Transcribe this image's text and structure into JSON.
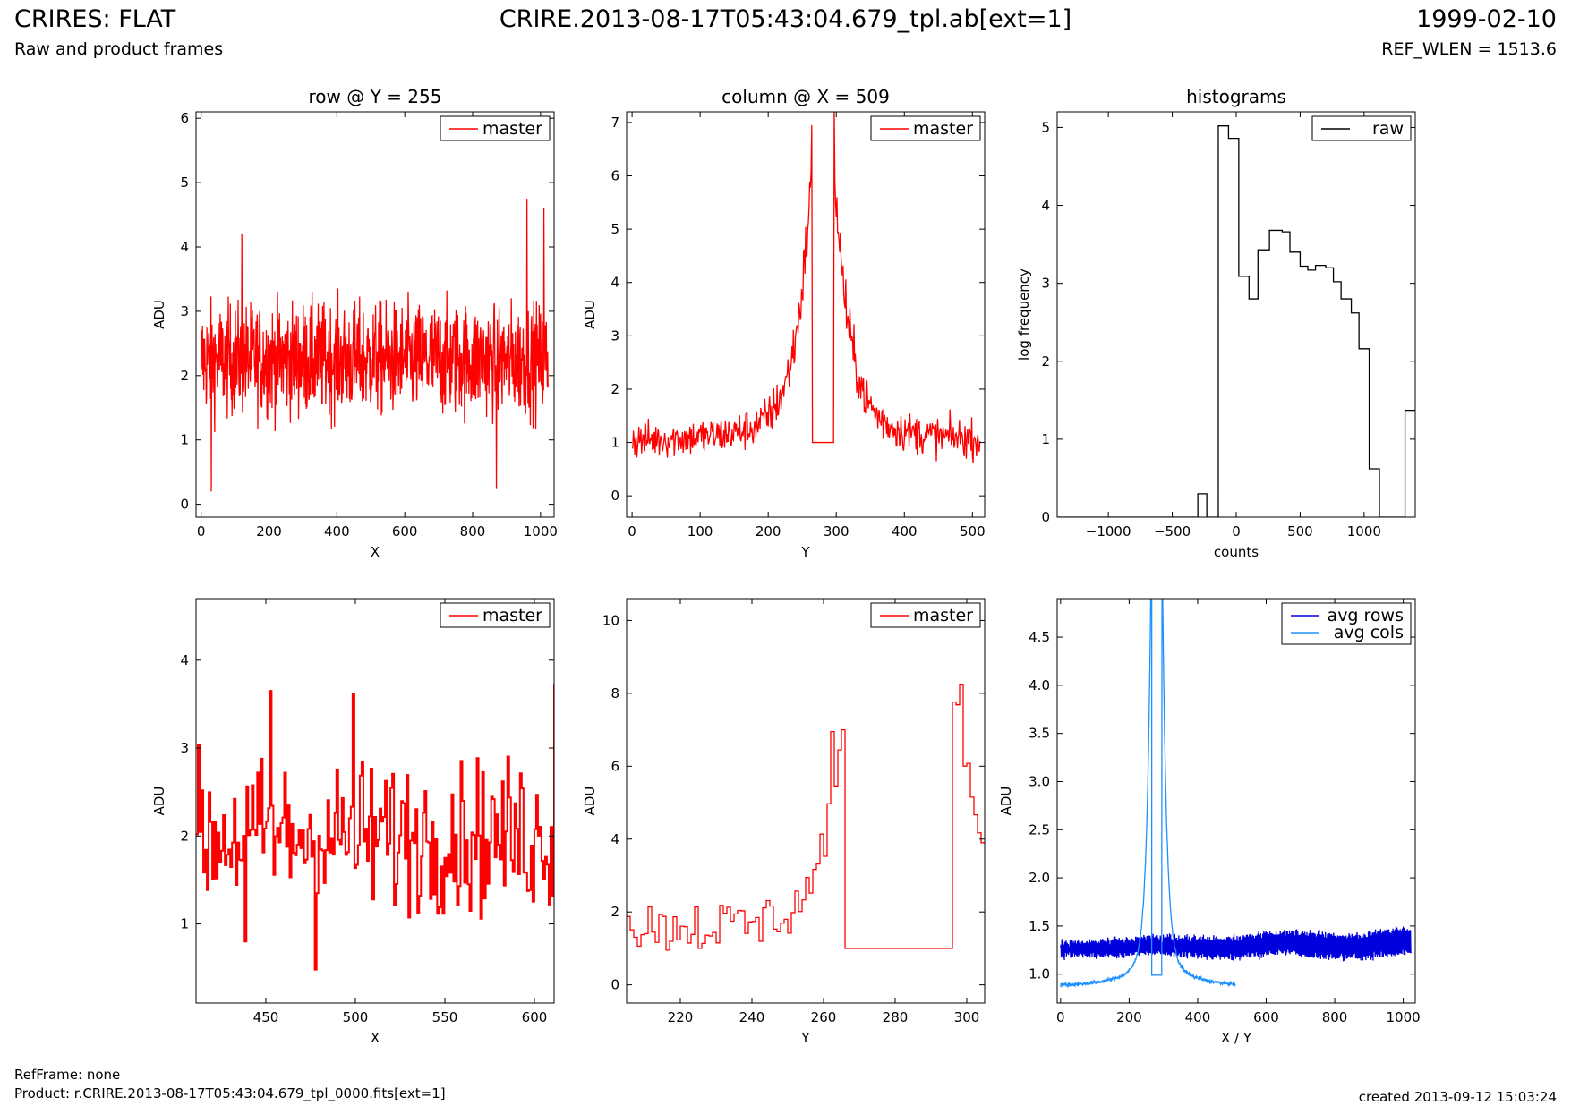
{
  "header": {
    "title": "CRIRES: FLAT",
    "subtitle": "Raw and product frames",
    "file": "CRIRE.2013-08-17T05:43:04.679_tpl.ab[ext=1]",
    "date": "1999-02-10",
    "ref_wlen": "REF_WLEN = 1513.6"
  },
  "footer": {
    "refframe": "RefFrame: none",
    "product": "Product: r.CRIRE.2013-08-17T05:43:04.679_tpl_0000.fits[ext=1]",
    "created": "created 2013-09-12 15:03:24"
  },
  "colors": {
    "master": "#ff0000",
    "raw": "#000000",
    "avg_rows": "#0000dd",
    "avg_cols": "#1e90ff"
  },
  "chart_data": [
    {
      "type": "line",
      "title": "row @ Y = 255",
      "xlabel": "X",
      "ylabel": "ADU",
      "xlim": [
        -15,
        1040
      ],
      "ylim": [
        -0.2,
        6.1
      ],
      "xticks": [
        0,
        200,
        400,
        600,
        800,
        1000
      ],
      "yticks": [
        0,
        1,
        2,
        3,
        4,
        5,
        6
      ],
      "series": [
        {
          "name": "master",
          "color": "#ff0000",
          "gen": "noise",
          "spec": {
            "x0": 0,
            "x1": 1023,
            "n": 1024,
            "mean": 2.25,
            "amp": 0.85,
            "min": 0.2,
            "max": 4.75,
            "spikes": [
              [
                120,
                4.2
              ],
              [
                870,
                0.25
              ],
              [
                960,
                4.75
              ],
              [
                1010,
                4.6
              ],
              [
                30,
                0.2
              ]
            ]
          }
        }
      ],
      "legend": "top-right"
    },
    {
      "type": "line",
      "title": "column @ X = 509",
      "xlabel": "Y",
      "ylabel": "ADU",
      "xlim": [
        -8,
        518
      ],
      "ylim": [
        -0.4,
        7.2
      ],
      "xticks": [
        0,
        100,
        200,
        300,
        400,
        500
      ],
      "yticks": [
        0,
        1,
        2,
        3,
        4,
        5,
        6,
        7
      ],
      "series": [
        {
          "name": "master",
          "color": "#ff0000",
          "gen": "column",
          "spec": {
            "x0": 0,
            "x1": 511,
            "n": 512,
            "floor": 1.0,
            "peak": 6.95,
            "flat_from": 265,
            "flat_to": 296
          }
        }
      ],
      "legend": "top-right"
    },
    {
      "type": "bar",
      "title": "histograms",
      "xlabel": "counts",
      "ylabel": "log frequency",
      "xlim": [
        -1400,
        1400
      ],
      "ylim": [
        0,
        5.2
      ],
      "xticks": [
        -1000,
        -500,
        0,
        500,
        1000
      ],
      "yticks": [
        0,
        1,
        2,
        3,
        4,
        5
      ],
      "series": [
        {
          "name": "raw",
          "color": "#000000",
          "gen": "steps",
          "spec": {
            "edges": [
              -300,
              -230,
              -140,
              -60,
              20,
              100,
              170,
              260,
              360,
              420,
              500,
              560,
              620,
              700,
              760,
              820,
              900,
              960,
              1040,
              1120,
              1180,
              1320,
              1400
            ],
            "values": [
              0.3,
              0,
              5.02,
              4.86,
              3.09,
              2.8,
              3.43,
              3.68,
              3.66,
              3.4,
              3.22,
              3.17,
              3.23,
              3.2,
              3.02,
              2.8,
              2.62,
              2.16,
              0.62,
              0,
              0,
              1.37
            ]
          }
        }
      ],
      "legend": "top-right"
    },
    {
      "type": "line",
      "title": "",
      "xlabel": "X",
      "ylabel": "ADU",
      "xlim": [
        411,
        611
      ],
      "ylim": [
        0.1,
        4.7
      ],
      "xticks": [
        450,
        500,
        550,
        600
      ],
      "yticks": [
        1,
        2,
        3,
        4
      ],
      "series": [
        {
          "name": "master",
          "color": "#ff0000",
          "gen": "stepnoise",
          "spec": {
            "x0": 411,
            "x1": 611,
            "n": 200,
            "mean": 2.0,
            "amp": 0.85,
            "min": 0.48,
            "max": 3.73,
            "spikes": [
              [
                452,
                3.65
              ],
              [
                477,
                0.48
              ],
              [
                498,
                3.62
              ],
              [
                611,
                3.73
              ],
              [
                438,
                0.8
              ]
            ]
          }
        }
      ],
      "legend": "top-right"
    },
    {
      "type": "line",
      "title": "",
      "xlabel": "Y",
      "ylabel": "ADU",
      "xlim": [
        205,
        305
      ],
      "ylim": [
        -0.5,
        10.6
      ],
      "xticks": [
        220,
        240,
        260,
        280,
        300
      ],
      "yticks": [
        0,
        2,
        4,
        6,
        8,
        10
      ],
      "series": [
        {
          "name": "master",
          "color": "#ff0000",
          "gen": "zoomcol",
          "spec": {
            "x0": 205,
            "x1": 305,
            "flat_from": 265,
            "flat_to": 296,
            "peaks": [
              [
                262,
                6.95
              ],
              [
                298,
                8.25
              ]
            ]
          }
        }
      ],
      "legend": "top-right"
    },
    {
      "type": "line",
      "title": "",
      "xlabel": "X / Y",
      "ylabel": "ADU",
      "xlim": [
        -10,
        1035
      ],
      "ylim": [
        0.7,
        4.9
      ],
      "xticks": [
        0,
        200,
        400,
        600,
        800,
        1000
      ],
      "yticks": [
        1.0,
        1.5,
        2.0,
        2.5,
        3.0,
        3.5,
        4.0,
        4.5
      ],
      "series": [
        {
          "name": "avg rows",
          "color": "#0000dd",
          "gen": "avgrows",
          "spec": {
            "x0": 0,
            "x1": 1023,
            "n": 1024,
            "mean": 1.27,
            "amp": 0.12
          }
        },
        {
          "name": "avg cols",
          "color": "#1e90ff",
          "gen": "avgcols",
          "spec": {
            "x0": 0,
            "x1": 511,
            "n": 512,
            "base": 0.88,
            "peak": 4.9,
            "flat_from": 265,
            "flat_to": 296,
            "flat": 0.99
          }
        }
      ],
      "legend": "top-right"
    }
  ]
}
